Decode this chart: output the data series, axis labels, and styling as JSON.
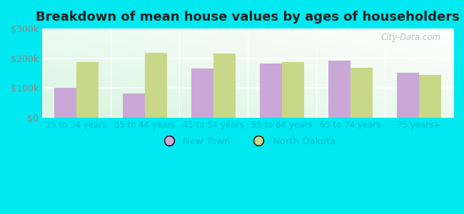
{
  "title": "Breakdown of mean house values by ages of householders",
  "categories": [
    "25 to 34 years",
    "35 to 44 years",
    "45 to 54 years",
    "55 to 64 years",
    "65 to 74 years",
    "75 years+"
  ],
  "new_town": [
    100000,
    80000,
    165000,
    182000,
    193000,
    152000
  ],
  "north_dakota": [
    188000,
    218000,
    215000,
    186000,
    168000,
    143000
  ],
  "new_town_color": "#c9a8d8",
  "north_dakota_color": "#c8d888",
  "ylim": [
    0,
    300000
  ],
  "yticks": [
    0,
    100000,
    200000,
    300000
  ],
  "ytick_labels": [
    "$0",
    "$100k",
    "$200k",
    "$300k"
  ],
  "plot_bg_color_bottom_left": "#b8f0d0",
  "plot_bg_color_top_right": "#f0faf8",
  "outer_background": "#00e8f0",
  "title_fontsize": 13,
  "legend_labels": [
    "New Town",
    "North Dakota"
  ],
  "watermark": "City-Data.com",
  "bar_width": 0.32,
  "tick_label_color": "#888888",
  "xtick_label_color": "#00bcd4"
}
